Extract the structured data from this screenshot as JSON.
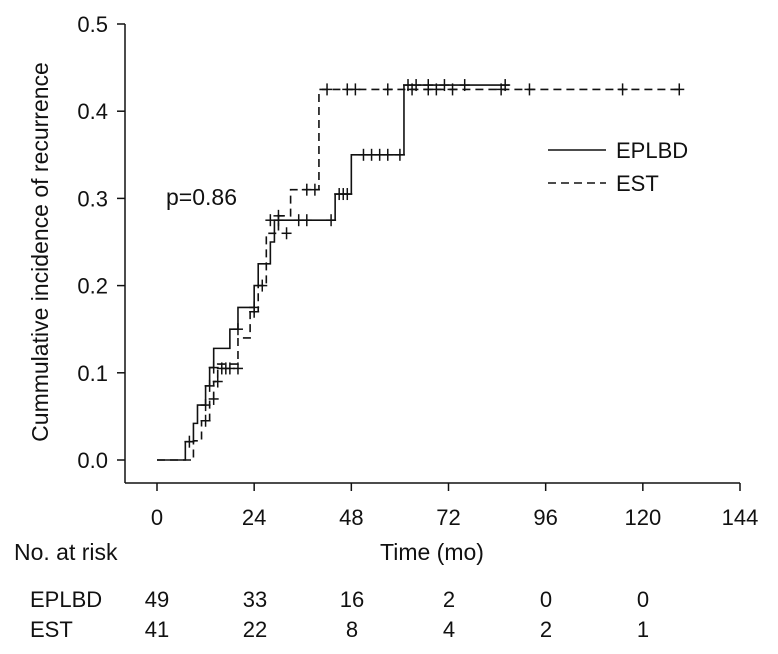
{
  "chart_data": {
    "type": "line",
    "title": "",
    "xlabel": "Time (mo)",
    "ylabel": "Cummulative incidence of recurrence",
    "xlim": [
      0,
      144
    ],
    "ylim": [
      0,
      0.5
    ],
    "x_ticks": [
      0,
      24,
      48,
      72,
      96,
      120,
      144
    ],
    "y_ticks": [
      "0.0",
      "0.1",
      "0.2",
      "0.3",
      "0.4",
      "0.5"
    ],
    "grid": false,
    "legend_position": "right",
    "annotation": "p=0.86",
    "series": [
      {
        "name": "EPLBD",
        "line_style": "solid",
        "color": "#111111",
        "steps": [
          [
            0,
            0
          ],
          [
            7,
            0.021
          ],
          [
            9,
            0.042
          ],
          [
            10,
            0.063
          ],
          [
            12,
            0.085
          ],
          [
            13,
            0.106
          ],
          [
            14,
            0.128
          ],
          [
            18,
            0.15
          ],
          [
            20,
            0.175
          ],
          [
            24,
            0.2
          ],
          [
            25,
            0.225
          ],
          [
            28,
            0.25
          ],
          [
            29,
            0.275
          ],
          [
            44,
            0.305
          ],
          [
            48,
            0.35
          ],
          [
            61,
            0.43
          ],
          [
            87,
            0.43
          ]
        ],
        "censors": [
          [
            8,
            0.021
          ],
          [
            12,
            0.063
          ],
          [
            13,
            0.085
          ],
          [
            14,
            0.106
          ],
          [
            20,
            0.15
          ],
          [
            24,
            0.175
          ],
          [
            28,
            0.275
          ],
          [
            30,
            0.275
          ],
          [
            35,
            0.275
          ],
          [
            37,
            0.275
          ],
          [
            43,
            0.275
          ],
          [
            45,
            0.305
          ],
          [
            46,
            0.305
          ],
          [
            47,
            0.305
          ],
          [
            51,
            0.35
          ],
          [
            53,
            0.35
          ],
          [
            55,
            0.35
          ],
          [
            57,
            0.35
          ],
          [
            60,
            0.35
          ],
          [
            62,
            0.43
          ],
          [
            64,
            0.43
          ],
          [
            67,
            0.43
          ],
          [
            71,
            0.43
          ],
          [
            76,
            0.43
          ],
          [
            86,
            0.43
          ]
        ]
      },
      {
        "name": "EST",
        "line_style": "dashed",
        "color": "#111111",
        "steps": [
          [
            0,
            0
          ],
          [
            9,
            0.022
          ],
          [
            11,
            0.045
          ],
          [
            13,
            0.07
          ],
          [
            14,
            0.09
          ],
          [
            15,
            0.11
          ],
          [
            20,
            0.14
          ],
          [
            23,
            0.17
          ],
          [
            25,
            0.2
          ],
          [
            27,
            0.26
          ],
          [
            30,
            0.28
          ],
          [
            33,
            0.31
          ],
          [
            40,
            0.425
          ],
          [
            130,
            0.425
          ]
        ],
        "censors": [
          [
            12,
            0.045
          ],
          [
            14,
            0.07
          ],
          [
            15,
            0.09
          ],
          [
            16,
            0.105
          ],
          [
            17,
            0.105
          ],
          [
            18,
            0.105
          ],
          [
            20,
            0.105
          ],
          [
            24,
            0.17
          ],
          [
            26,
            0.2
          ],
          [
            30,
            0.28
          ],
          [
            32,
            0.26
          ],
          [
            37,
            0.31
          ],
          [
            39,
            0.31
          ],
          [
            42,
            0.425
          ],
          [
            47,
            0.425
          ],
          [
            49,
            0.425
          ],
          [
            57,
            0.425
          ],
          [
            63,
            0.425
          ],
          [
            67,
            0.425
          ],
          [
            69,
            0.425
          ],
          [
            73,
            0.425
          ],
          [
            85,
            0.425
          ],
          [
            92,
            0.425
          ],
          [
            115,
            0.425
          ],
          [
            129,
            0.425
          ]
        ]
      }
    ]
  },
  "risk_table": {
    "header": "No. at risk",
    "rows": [
      {
        "label": "EPLBD",
        "values": [
          "49",
          "33",
          "16",
          "2",
          "0",
          "0"
        ]
      },
      {
        "label": "EST",
        "values": [
          "41",
          "22",
          "8",
          "4",
          "2",
          "1"
        ]
      }
    ]
  }
}
